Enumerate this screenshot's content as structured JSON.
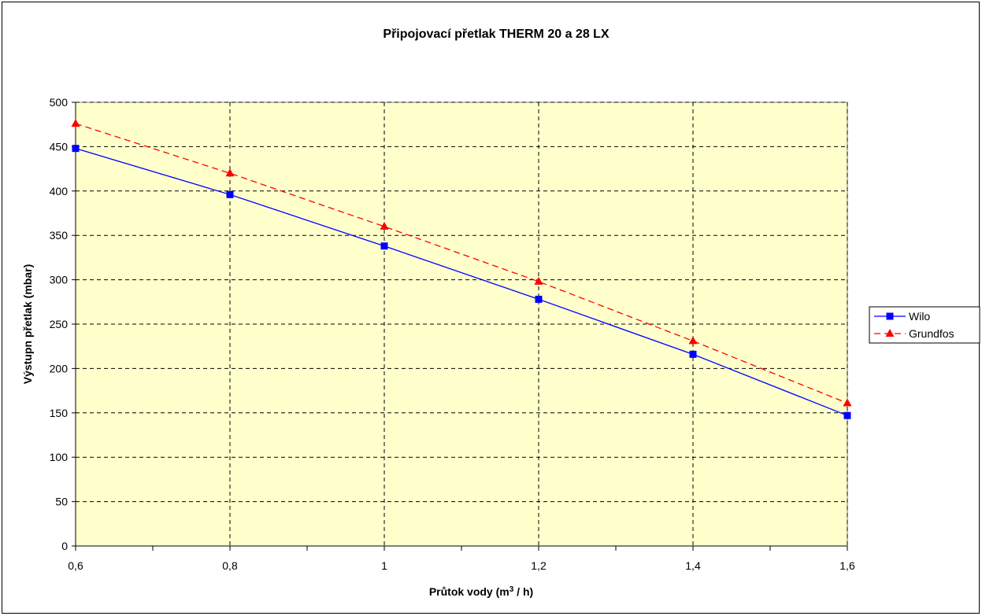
{
  "chart_data": {
    "type": "line",
    "title": "Připojovací přetlak THERM 20 a 28 LX",
    "xlabel_prefix": "Průtok vody (m",
    "xlabel_sup": "3",
    "xlabel_suffix": " / h)",
    "ylabel": "Výstupn přetlak (mbar)",
    "x": [
      0.6,
      0.8,
      1.0,
      1.2,
      1.4,
      1.6
    ],
    "x_tick_labels": [
      "0,6",
      "0,8",
      "1",
      "1,2",
      "1,4",
      "1,6"
    ],
    "xlim": [
      0.6,
      1.6
    ],
    "ylim": [
      0,
      500
    ],
    "y_ticks": [
      0,
      50,
      100,
      150,
      200,
      250,
      300,
      350,
      400,
      450,
      500
    ],
    "grid": true,
    "plot_background": "#FFFFCC",
    "legend_position": "right",
    "series": [
      {
        "name": "Wilo",
        "values": [
          448,
          396,
          338,
          278,
          216,
          147
        ],
        "color": "#0000FF",
        "marker": "square",
        "line_style": "solid"
      },
      {
        "name": "Grundfos",
        "values": [
          476,
          420,
          360,
          298,
          231,
          161
        ],
        "color": "#FF0000",
        "marker": "triangle",
        "line_style": "dashed"
      }
    ]
  }
}
